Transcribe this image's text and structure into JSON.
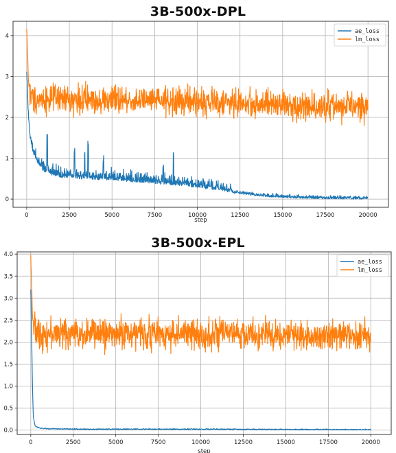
{
  "chart_data": [
    {
      "type": "line",
      "title": "3B-500x-DPL",
      "xlabel": "step",
      "ylabel": "",
      "xlim": [
        -800,
        21200
      ],
      "ylim": [
        -0.2,
        4.35
      ],
      "xticks": [
        0,
        2500,
        5000,
        7500,
        10000,
        12500,
        15000,
        17500,
        20000
      ],
      "yticks": [
        0,
        1,
        2,
        3,
        4
      ],
      "grid": true,
      "legend": "top-right",
      "series": [
        {
          "name": "ae_loss",
          "color": "#1f77b4",
          "x": [
            0,
            100,
            200,
            400,
            700,
            1000,
            1500,
            2000,
            3000,
            4000,
            5000,
            6000,
            7500,
            9000,
            10000,
            11000,
            12000,
            13000,
            14000,
            15000,
            16000,
            17000,
            18000,
            19000,
            20000
          ],
          "y": [
            3.1,
            2.0,
            1.5,
            1.1,
            0.85,
            0.7,
            0.6,
            0.55,
            0.52,
            0.5,
            0.48,
            0.45,
            0.4,
            0.35,
            0.3,
            0.25,
            0.18,
            0.12,
            0.08,
            0.06,
            0.04,
            0.03,
            0.03,
            0.02,
            0.02
          ],
          "noise": 0.08,
          "spikes": [
            [
              1200,
              1.5
            ],
            [
              2800,
              1.15
            ],
            [
              3400,
              1.1
            ],
            [
              3600,
              1.25
            ],
            [
              4500,
              0.95
            ],
            [
              8000,
              0.8
            ],
            [
              8600,
              1.05
            ]
          ]
        },
        {
          "name": "lm_loss",
          "color": "#ff7f0e",
          "x": [
            0,
            50,
            100,
            200,
            400,
            1000,
            5000,
            10000,
            15000,
            20000
          ],
          "y": [
            4.15,
            3.6,
            2.9,
            2.55,
            2.45,
            2.45,
            2.42,
            2.38,
            2.3,
            2.25
          ],
          "noise": 0.17
        }
      ]
    },
    {
      "type": "line",
      "title": "3B-500x-EPL",
      "xlabel": "step",
      "ylabel": "",
      "xlim": [
        -800,
        21200
      ],
      "ylim": [
        -0.1,
        4.05
      ],
      "xticks": [
        0,
        2500,
        5000,
        7500,
        10000,
        12500,
        15000,
        17500,
        20000
      ],
      "yticks": [
        0.0,
        0.5,
        1.0,
        1.5,
        2.0,
        2.5,
        3.0,
        3.5,
        4.0
      ],
      "ytick_labels": [
        "0.0",
        "0.5",
        "1.0",
        "1.5",
        "2.0",
        "2.5",
        "3.0",
        "3.5",
        "4.0"
      ],
      "grid": true,
      "legend": "top-right",
      "series": [
        {
          "name": "ae_loss",
          "color": "#1f77b4",
          "x": [
            0,
            50,
            100,
            150,
            250,
            400,
            600,
            1000,
            3000,
            10000,
            20000
          ],
          "y": [
            3.2,
            2.2,
            1.0,
            0.3,
            0.1,
            0.06,
            0.04,
            0.03,
            0.02,
            0.02,
            0.01
          ],
          "noise": 0.006
        },
        {
          "name": "lm_loss",
          "color": "#ff7f0e",
          "x": [
            0,
            50,
            100,
            200,
            400,
            1000,
            5000,
            10000,
            15000,
            20000
          ],
          "y": [
            3.95,
            3.4,
            2.6,
            2.3,
            2.2,
            2.2,
            2.2,
            2.18,
            2.16,
            2.15
          ],
          "noise": 0.17
        }
      ]
    }
  ]
}
